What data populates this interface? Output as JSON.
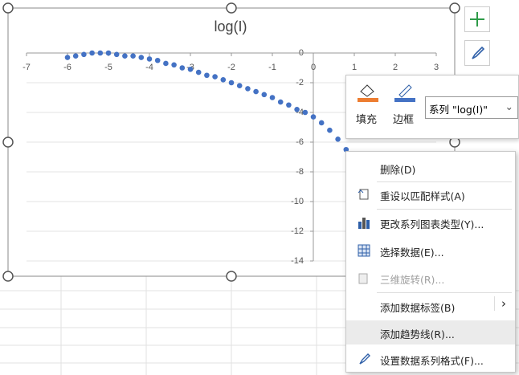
{
  "chart_data": {
    "type": "scatter",
    "title": "log(I)",
    "x": [
      -6.0,
      -5.8,
      -5.6,
      -5.4,
      -5.2,
      -5.0,
      -4.8,
      -4.6,
      -4.4,
      -4.2,
      -4.0,
      -3.8,
      -3.6,
      -3.4,
      -3.2,
      -3.0,
      -2.8,
      -2.6,
      -2.4,
      -2.2,
      -2.0,
      -1.8,
      -1.6,
      -1.4,
      -1.2,
      -1.0,
      -0.8,
      -0.6,
      -0.4,
      -0.2,
      0.0,
      0.2,
      0.4,
      0.6,
      0.8
    ],
    "values": [
      -0.3,
      -0.2,
      -0.1,
      0,
      0,
      0,
      -0.1,
      -0.2,
      -0.2,
      -0.3,
      -0.4,
      -0.5,
      -0.7,
      -0.8,
      -1.0,
      -1.1,
      -1.3,
      -1.5,
      -1.6,
      -1.8,
      -2.0,
      -2.2,
      -2.4,
      -2.6,
      -2.8,
      -3.0,
      -3.3,
      -3.5,
      -3.8,
      -4.0,
      -4.3,
      -4.7,
      -5.2,
      -5.8,
      -6.5
    ],
    "color": "#4472c4",
    "xlim": [
      -7,
      3
    ],
    "xticks": [
      -7,
      -6,
      -5,
      -4,
      -3,
      -2,
      -1,
      0,
      1,
      2,
      3
    ],
    "ylim": [
      -14,
      0
    ],
    "yticks": [
      0,
      -2,
      -4,
      -6,
      -8,
      -10,
      -12,
      -14
    ],
    "grid": true
  },
  "toolbar": {
    "fill": "填充",
    "border": "边框",
    "series_select": "系列 \"log(I)\""
  },
  "context_menu": {
    "items": [
      "删除(D)",
      "重设以匹配样式(A)",
      "更改系列图表类型(Y)...",
      "选择数据(E)...",
      "三维旋转(R)...",
      "添加数据标签(B)",
      "添加趋势线(R)...",
      "设置数据系列格式(F)..."
    ]
  }
}
